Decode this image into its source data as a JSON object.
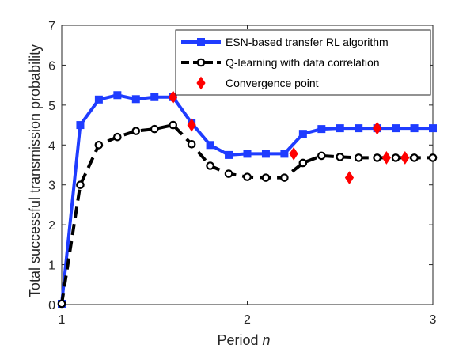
{
  "chart_data": {
    "type": "line",
    "title": "",
    "xlabel": "Period",
    "xlabel_var": "n",
    "ylabel": "Total successful transmission probability",
    "xlim": [
      1,
      3.0
    ],
    "ylim": [
      0,
      7
    ],
    "xticks": [
      1,
      2,
      3
    ],
    "yticks": [
      0,
      1,
      2,
      3,
      4,
      5,
      6,
      7
    ],
    "grid": false,
    "legend_position": "top-right",
    "series": [
      {
        "name": "ESN-based transfer RL algorithm",
        "color": "#1f3cff",
        "line_style": "solid",
        "marker": "square",
        "x": [
          1.0,
          1.1,
          1.2,
          1.3,
          1.4,
          1.5,
          1.6,
          1.7,
          1.8,
          1.9,
          2.0,
          2.1,
          2.2,
          2.3,
          2.4,
          2.5,
          2.6,
          2.7,
          2.8,
          2.9,
          3.0
        ],
        "values": [
          0.02,
          4.5,
          5.14,
          5.25,
          5.15,
          5.2,
          5.2,
          4.55,
          4.0,
          3.75,
          3.78,
          3.78,
          3.78,
          4.28,
          4.4,
          4.42,
          4.42,
          4.42,
          4.42,
          4.42,
          4.42
        ]
      },
      {
        "name": "Q-learning with data correlation",
        "color": "#000000",
        "line_style": "dashed",
        "marker": "circle",
        "x": [
          1.0,
          1.1,
          1.2,
          1.3,
          1.4,
          1.5,
          1.6,
          1.7,
          1.8,
          1.9,
          2.0,
          2.1,
          2.2,
          2.3,
          2.4,
          2.5,
          2.6,
          2.7,
          2.8,
          2.9,
          3.0
        ],
        "values": [
          0.02,
          3.0,
          4.0,
          4.2,
          4.35,
          4.4,
          4.5,
          4.02,
          3.48,
          3.28,
          3.2,
          3.18,
          3.18,
          3.55,
          3.73,
          3.7,
          3.68,
          3.68,
          3.68,
          3.68,
          3.68
        ]
      },
      {
        "name": "Convergence point",
        "color": "#ff0000",
        "line_style": "none",
        "marker": "diamond",
        "x": [
          1.6,
          1.7,
          2.25,
          2.55,
          2.7,
          2.85,
          2.75
        ],
        "values": [
          5.2,
          4.5,
          3.78,
          3.18,
          4.42,
          3.68,
          3.68
        ]
      }
    ]
  }
}
